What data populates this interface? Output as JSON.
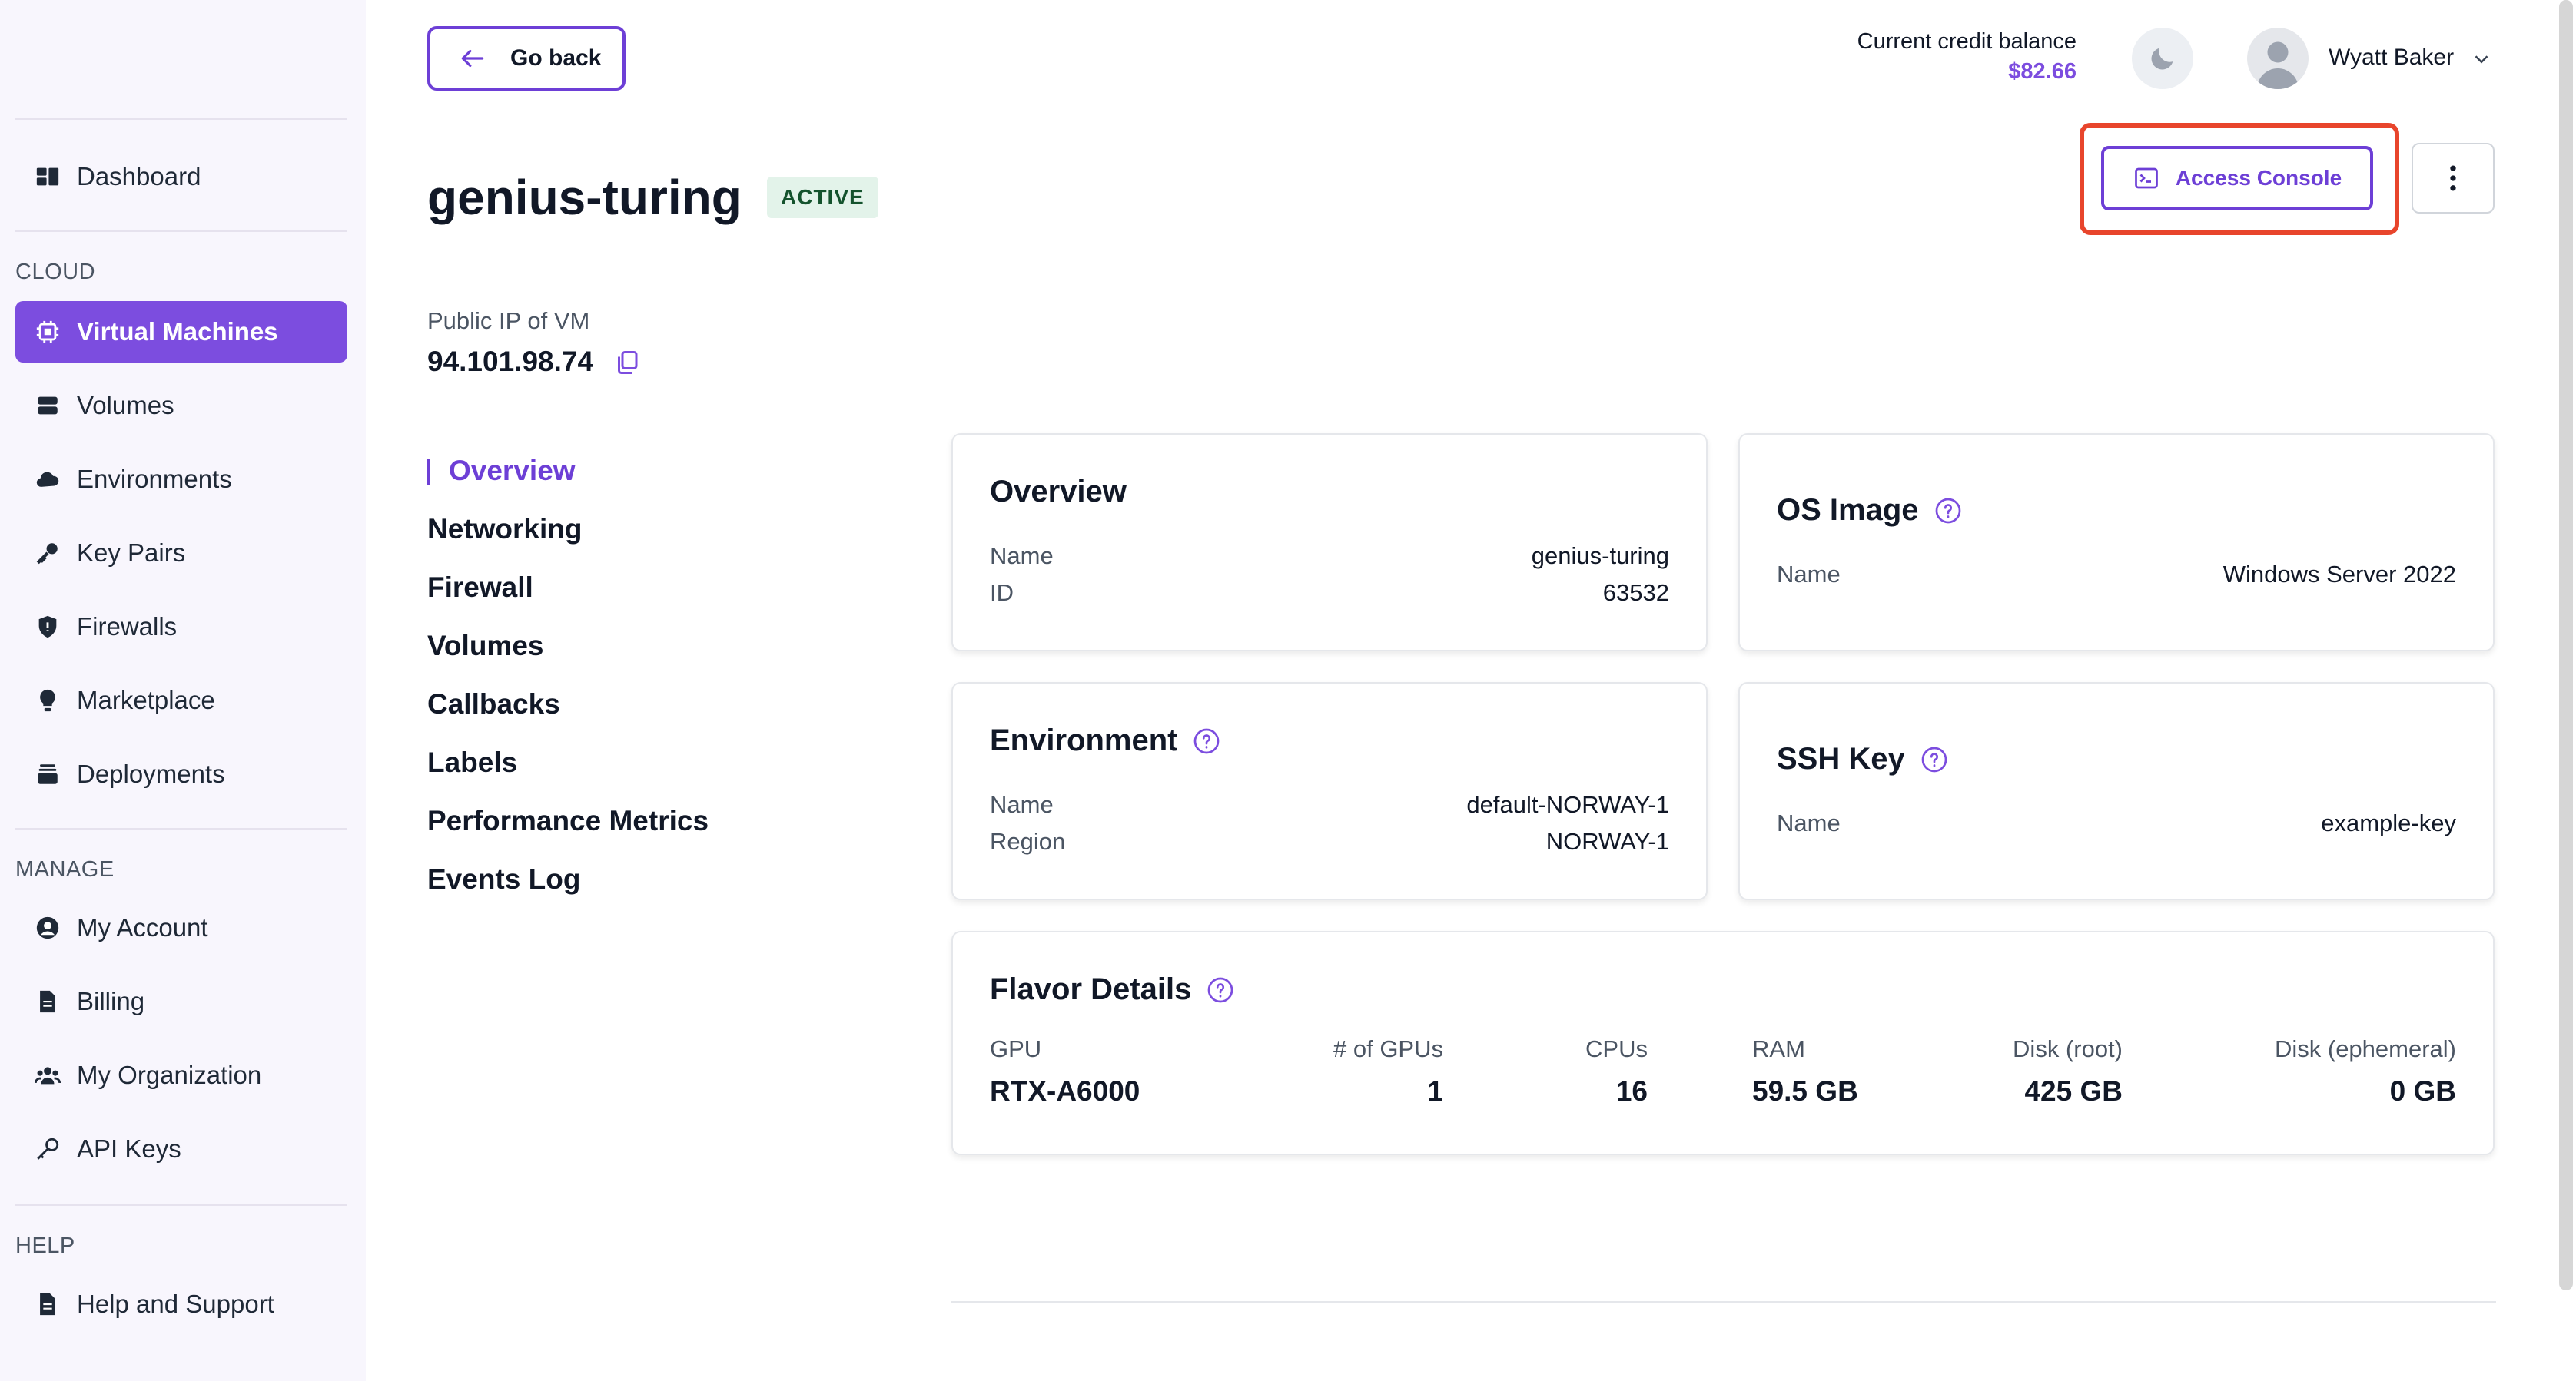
{
  "sidebar": {
    "dashboard": "Dashboard",
    "cloud_section": "CLOUD",
    "cloud_items": [
      {
        "label": "Virtual Machines",
        "icon": "chip-icon",
        "active": true
      },
      {
        "label": "Volumes",
        "icon": "volumes-icon"
      },
      {
        "label": "Environments",
        "icon": "cloud-icon"
      },
      {
        "label": "Key Pairs",
        "icon": "key-icon"
      },
      {
        "label": "Firewalls",
        "icon": "shield-icon"
      },
      {
        "label": "Marketplace",
        "icon": "lightbulb-icon"
      },
      {
        "label": "Deployments",
        "icon": "layers-icon"
      }
    ],
    "manage_section": "MANAGE",
    "manage_items": [
      {
        "label": "My Account",
        "icon": "user-circle-icon"
      },
      {
        "label": "Billing",
        "icon": "document-icon"
      },
      {
        "label": "My Organization",
        "icon": "users-icon"
      },
      {
        "label": "API Keys",
        "icon": "key-outline-icon"
      }
    ],
    "help_section": "HELP",
    "help_items": [
      {
        "label": "Help and Support",
        "icon": "document-icon"
      }
    ]
  },
  "header": {
    "go_back": "Go back",
    "credit_label": "Current credit balance",
    "credit_value": "$82.66",
    "user_name": "Wyatt Baker"
  },
  "vm": {
    "name": "genius-turing",
    "status": "ACTIVE",
    "ip_label": "Public IP of VM",
    "ip": "94.101.98.74",
    "access_console": "Access Console"
  },
  "section_nav": [
    "Overview",
    "Networking",
    "Firewall",
    "Volumes",
    "Callbacks",
    "Labels",
    "Performance Metrics",
    "Events Log"
  ],
  "overview_card": {
    "title": "Overview",
    "rows": [
      {
        "label": "Name",
        "value": "genius-turing"
      },
      {
        "label": "ID",
        "value": "63532"
      }
    ]
  },
  "os_image_card": {
    "title": "OS Image",
    "rows": [
      {
        "label": "Name",
        "value": "Windows Server 2022"
      }
    ]
  },
  "environment_card": {
    "title": "Environment",
    "rows": [
      {
        "label": "Name",
        "value": "default-NORWAY-1"
      },
      {
        "label": "Region",
        "value": "NORWAY-1"
      }
    ]
  },
  "ssh_key_card": {
    "title": "SSH Key",
    "rows": [
      {
        "label": "Name",
        "value": "example-key"
      }
    ]
  },
  "flavor_card": {
    "title": "Flavor Details",
    "columns": [
      {
        "label": "GPU",
        "value": "RTX-A6000"
      },
      {
        "label": "# of GPUs",
        "value": "1"
      },
      {
        "label": "CPUs",
        "value": "16"
      },
      {
        "label": "RAM",
        "value": "59.5 GB"
      },
      {
        "label": "Disk (root)",
        "value": "425 GB"
      },
      {
        "label": "Disk (ephemeral)",
        "value": "0 GB"
      }
    ]
  },
  "colors": {
    "accent": "#7c4ddf",
    "highlight": "#e8452c",
    "status_bg": "#e3f3ea"
  }
}
